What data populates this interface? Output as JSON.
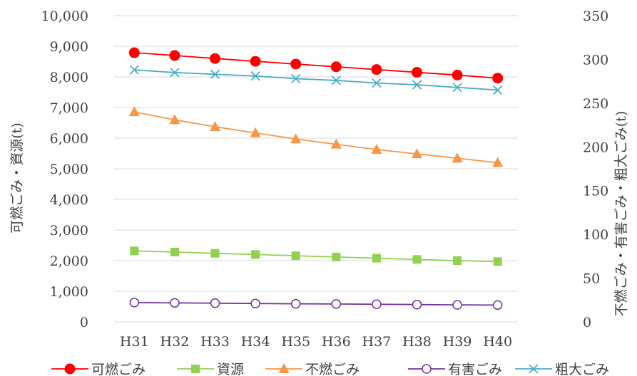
{
  "chart_data": {
    "type": "line",
    "title": "",
    "x": [
      "H31",
      "H32",
      "H33",
      "H34",
      "H35",
      "H36",
      "H37",
      "H38",
      "H39",
      "H40"
    ],
    "y_left": {
      "label": "可燃ごみ・資源(t)",
      "ylim": [
        0,
        10000
      ],
      "ticks": [
        "0",
        "1,000",
        "2,000",
        "3,000",
        "4,000",
        "5,000",
        "6,000",
        "7,000",
        "8,000",
        "9,000",
        "10,000"
      ]
    },
    "y_right": {
      "label": "不燃ごみ・有害ごみ・粗大ごみ(t)",
      "ylim": [
        0,
        350
      ],
      "ticks": [
        "0",
        "50",
        "100",
        "150",
        "200",
        "250",
        "300",
        "350"
      ]
    },
    "grid": true,
    "legend_position": "bottom",
    "series": [
      {
        "name": "可燃ごみ",
        "axis": "left",
        "color": "#ff0000",
        "marker": "circle",
        "values": [
          8790,
          8700,
          8600,
          8510,
          8420,
          8330,
          8240,
          8150,
          8060,
          7960
        ]
      },
      {
        "name": "資源",
        "axis": "left",
        "color": "#92d050",
        "marker": "square",
        "values": [
          2320,
          2280,
          2240,
          2200,
          2160,
          2120,
          2080,
          2040,
          2000,
          1970
        ]
      },
      {
        "name": "不燃ごみ",
        "axis": "right",
        "color": "#f79646",
        "marker": "triangle",
        "values": [
          240,
          231,
          223,
          216,
          209,
          203,
          197,
          192,
          187,
          182
        ]
      },
      {
        "name": "有害ごみ",
        "axis": "left",
        "color": "#7030a0",
        "marker": "circle-open",
        "values": [
          630,
          620,
          610,
          600,
          590,
          585,
          575,
          565,
          555,
          550
        ]
      },
      {
        "name": "粗大ごみ",
        "axis": "right",
        "color": "#4bacc6",
        "marker": "x",
        "values": [
          288,
          285,
          283,
          281,
          278,
          276,
          273,
          271,
          268,
          265
        ]
      }
    ]
  }
}
